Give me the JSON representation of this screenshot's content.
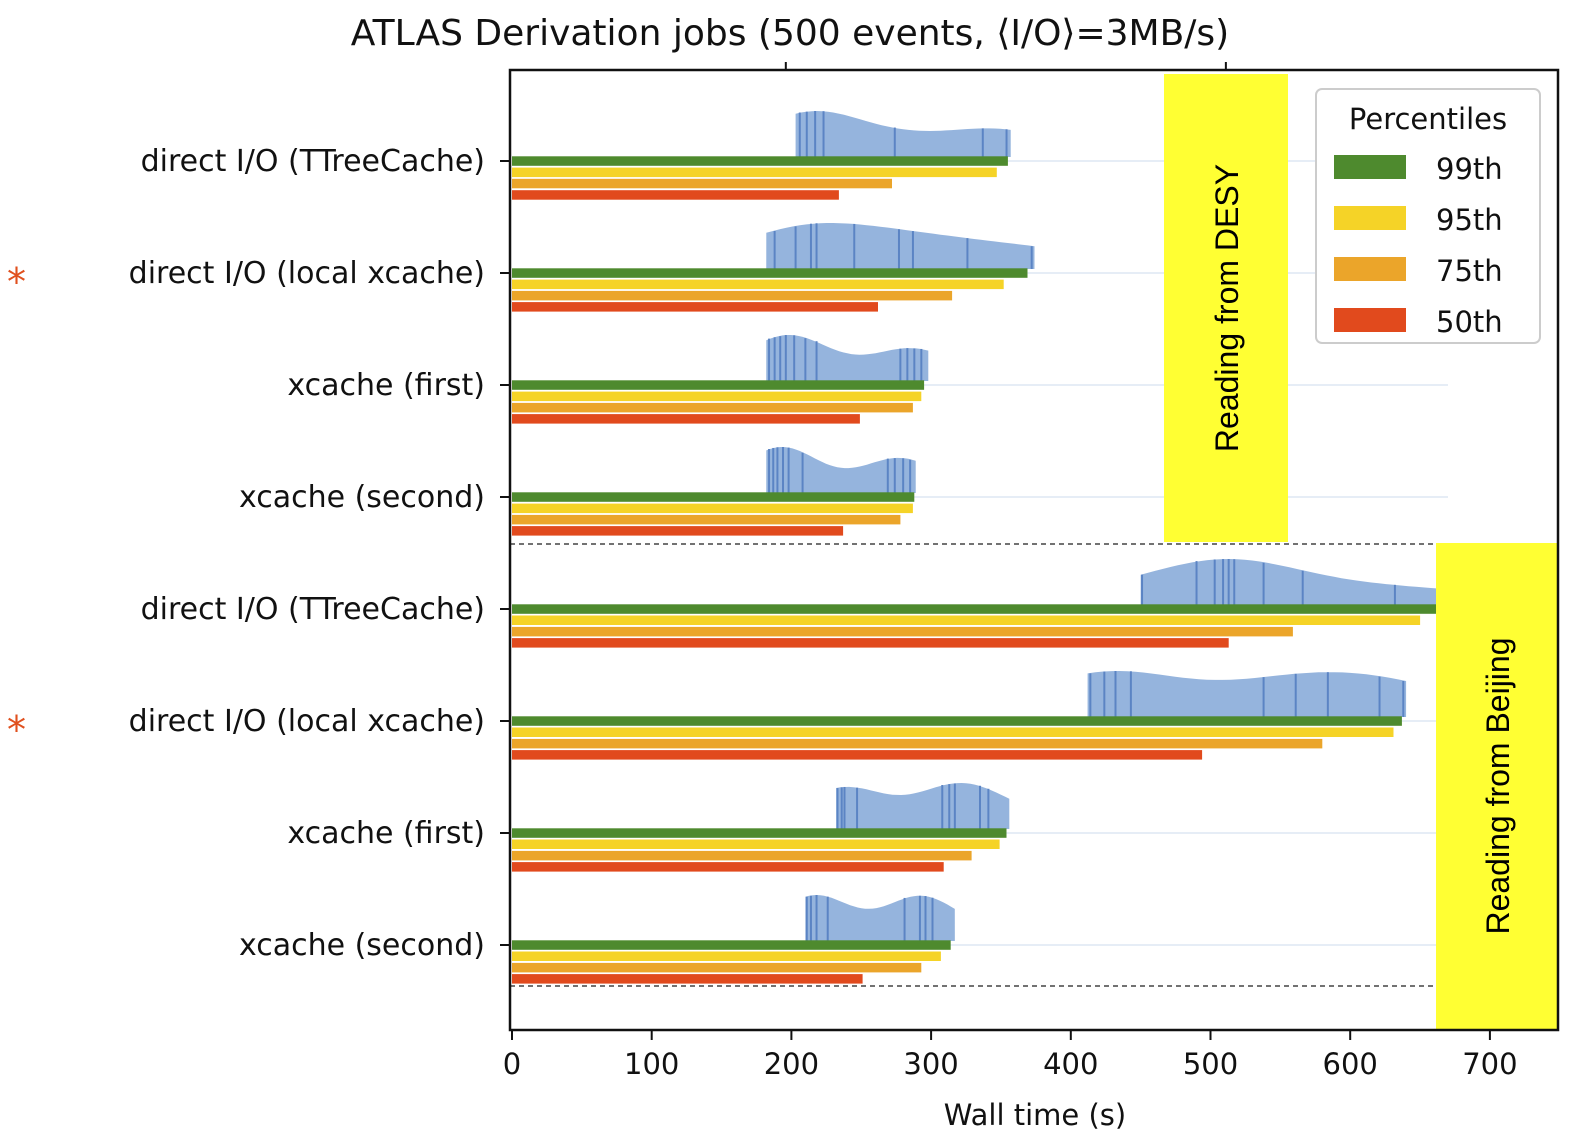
{
  "chart_data": {
    "type": "bar",
    "title": "ATLAS Derivation jobs (500 events, ⟨I/O⟩=3MB/s)",
    "xlabel": "Wall time (s)",
    "ylabel": "",
    "xlim": [
      0,
      750
    ],
    "xticks": [
      0,
      100,
      200,
      300,
      400,
      500,
      600,
      700
    ],
    "categories": [
      "direct I/O (TTreeCache)",
      "direct I/O (local xcache)",
      "xcache (first)",
      "xcache (second)",
      "direct I/O (TTreeCache)",
      "direct I/O (local xcache)",
      "xcache (first)",
      "xcache (second)"
    ],
    "starred": [
      false,
      true,
      false,
      false,
      false,
      true,
      false,
      false
    ],
    "groups": [
      {
        "label": "Reading from DESY",
        "categories": [
          0,
          1,
          2,
          3
        ]
      },
      {
        "label": "Reading from Beijing",
        "categories": [
          4,
          5,
          6,
          7
        ]
      }
    ],
    "series": [
      {
        "name": "99th",
        "color": "#4e8a2e",
        "values": [
          355,
          369,
          295,
          288,
          663,
          637,
          354,
          314
        ]
      },
      {
        "name": "95th",
        "color": "#f5d327",
        "values": [
          347,
          352,
          293,
          287,
          650,
          631,
          349,
          307
        ]
      },
      {
        "name": "75th",
        "color": "#eba52a",
        "values": [
          272,
          315,
          287,
          278,
          559,
          580,
          329,
          293
        ]
      },
      {
        "name": "50th",
        "color": "#e14a1d",
        "values": [
          234,
          262,
          249,
          237,
          513,
          494,
          309,
          251
        ]
      }
    ],
    "distributions": [
      {
        "min": 203,
        "max": 357,
        "ticks": [
          206,
          211,
          217,
          223,
          274,
          337,
          354
        ]
      },
      {
        "min": 182,
        "max": 374,
        "ticks": [
          188,
          203,
          214,
          218,
          245,
          277,
          287,
          326,
          372
        ]
      },
      {
        "min": 182,
        "max": 298,
        "ticks": [
          184,
          188,
          192,
          196,
          202,
          210,
          218,
          278,
          283,
          288,
          293
        ]
      },
      {
        "min": 182,
        "max": 289,
        "ticks": [
          184,
          187,
          190,
          194,
          198,
          208,
          269,
          274,
          280,
          285
        ]
      },
      {
        "min": 450,
        "max": 663,
        "ticks": [
          451,
          490,
          503,
          509,
          513,
          517,
          538,
          566,
          632
        ]
      },
      {
        "min": 412,
        "max": 640,
        "ticks": [
          414,
          424,
          432,
          443,
          538,
          561,
          584,
          621,
          638
        ]
      },
      {
        "min": 232,
        "max": 356,
        "ticks": [
          233,
          236,
          238,
          247,
          308,
          313,
          317,
          335,
          341
        ]
      },
      {
        "min": 210,
        "max": 317,
        "ticks": [
          211,
          214,
          218,
          226,
          281,
          292,
          296,
          301
        ]
      }
    ],
    "legend": {
      "title": "Percentiles",
      "position": "top-right"
    },
    "colors": {
      "distribution_fill": "#8fb0db",
      "distribution_line": "#5b84c4",
      "highlight_box": "#ffff33",
      "star": "#e0501e"
    }
  }
}
